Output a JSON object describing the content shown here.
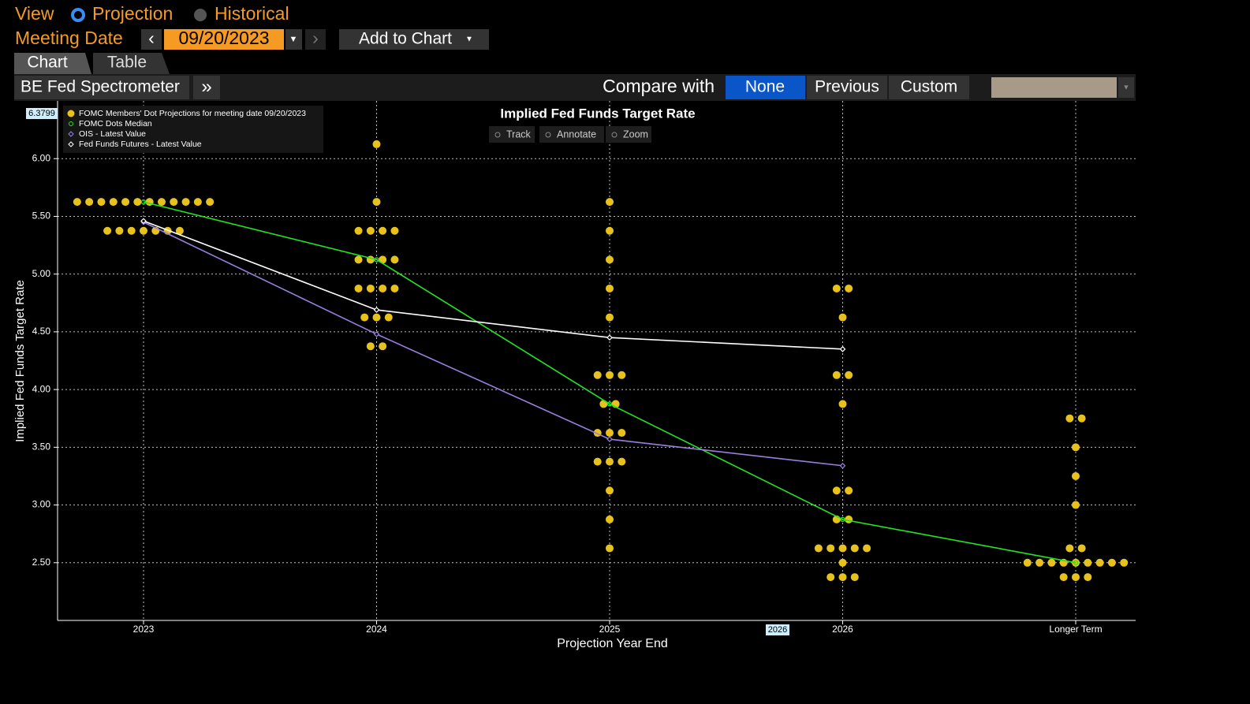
{
  "ui": {
    "view_label": "View",
    "view_options": [
      "Projection",
      "Historical"
    ],
    "meeting_date_label": "Meeting Date",
    "meeting_date": "09/20/2023",
    "add_to_chart": "Add to Chart",
    "tabs": [
      "Chart",
      "Table"
    ],
    "toolbar_title": "BE Fed Spectrometer",
    "compare_label": "Compare with",
    "compare_options": [
      "None",
      "Previous",
      "Custom"
    ],
    "chart_tools": [
      "Track",
      "Annotate",
      "Zoom"
    ],
    "cursor_y": "6.3799",
    "cursor_x": "2026"
  },
  "chart_data": {
    "type": "dot_plot",
    "title": "Implied Fed Funds Target Rate",
    "x_label": "Projection Year End",
    "y_label": "Implied Fed Funds Target Rate",
    "categories": [
      "2023",
      "2024",
      "2025",
      "2026",
      "Longer Term"
    ],
    "ylim": [
      2.0,
      6.5
    ],
    "yticks": [
      {
        "value": 2.5,
        "label": "2.50"
      },
      {
        "value": 3.0,
        "label": "3.00"
      },
      {
        "value": 3.5,
        "label": "3.50"
      },
      {
        "value": 4.0,
        "label": "4.00"
      },
      {
        "value": 4.5,
        "label": "4.50"
      },
      {
        "value": 5.0,
        "label": "5.00"
      },
      {
        "value": 5.5,
        "label": "5.50"
      },
      {
        "value": 6.0,
        "label": "6.00"
      }
    ],
    "grid": true,
    "legend": "upper left",
    "series": [
      {
        "name": "FOMC Members' Dot Projections for meeting date 09/20/2023",
        "color": "#e8c21c",
        "marker": "dot",
        "values": [
          [
            5.625,
            5.625,
            5.625,
            5.625,
            5.625,
            5.625,
            5.625,
            5.625,
            5.625,
            5.625,
            5.625,
            5.625,
            5.375,
            5.375,
            5.375,
            5.375,
            5.375,
            5.375,
            5.375
          ],
          [
            6.125,
            5.625,
            5.375,
            5.375,
            5.375,
            5.375,
            5.125,
            5.125,
            5.125,
            5.125,
            4.875,
            4.875,
            4.875,
            4.875,
            4.625,
            4.625,
            4.625,
            4.375,
            4.375
          ],
          [
            5.625,
            5.375,
            5.125,
            4.875,
            4.625,
            4.125,
            4.125,
            4.125,
            3.875,
            3.875,
            3.625,
            3.625,
            3.625,
            3.375,
            3.375,
            3.375,
            3.125,
            2.875,
            2.625
          ],
          [
            4.875,
            4.875,
            4.625,
            4.125,
            4.125,
            3.875,
            3.125,
            3.125,
            2.875,
            2.875,
            2.625,
            2.625,
            2.625,
            2.625,
            2.625,
            2.5,
            2.375,
            2.375,
            2.375
          ],
          [
            3.75,
            3.75,
            3.5,
            3.25,
            3.0,
            2.625,
            2.625,
            2.5,
            2.5,
            2.5,
            2.5,
            2.5,
            2.5,
            2.5,
            2.5,
            2.5,
            2.375,
            2.375,
            2.375
          ]
        ]
      },
      {
        "name": "FOMC Dots Median",
        "color": "#22e622",
        "marker": "circle",
        "values": [
          5.625,
          5.125,
          3.875,
          2.875,
          2.5
        ]
      },
      {
        "name": "OIS - Latest Value",
        "color": "#9a7fe0",
        "marker": "diamond",
        "values": [
          5.45,
          4.48,
          3.57,
          3.34,
          null
        ]
      },
      {
        "name": "Fed Funds Futures - Latest Value",
        "color": "#ffffff",
        "marker": "diamond",
        "values": [
          5.46,
          4.69,
          4.45,
          4.35,
          null
        ]
      }
    ]
  }
}
